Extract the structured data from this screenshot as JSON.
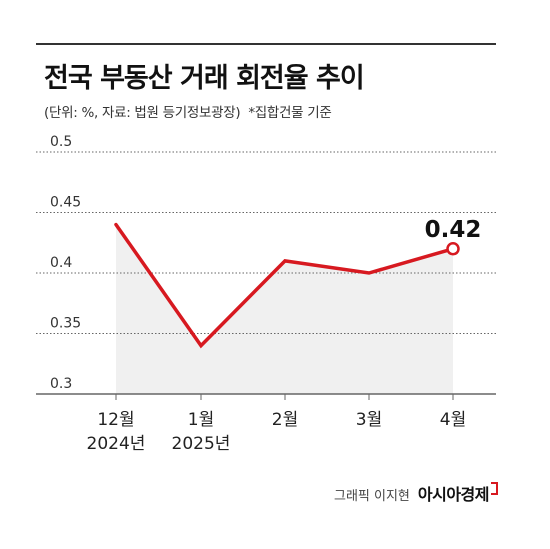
{
  "header": {
    "title": "전국 부동산 거래 회전율 추이",
    "source": "(단위: %, 자료: 법원 등기정보광장)",
    "note": "*집합건물 기준"
  },
  "footer": {
    "graphic_credit": "그래픽 이지현",
    "brand": "아시아경제"
  },
  "colors": {
    "line": "#d71920",
    "area": "#f0f0f0",
    "grid": "#666666",
    "text": "#333333"
  },
  "chart_data": {
    "type": "line",
    "categories": [
      "12월\n2024년",
      "1월\n2025년",
      "2월",
      "3월",
      "4월"
    ],
    "values": [
      0.44,
      0.34,
      0.41,
      0.4,
      0.42
    ],
    "y_ticks": [
      "0.5",
      "0.45",
      "0.4",
      "0.35",
      "0.3"
    ],
    "ylim": [
      0.3,
      0.5
    ],
    "grid": "horizontal-dotted",
    "highlight": {
      "index": 4,
      "label": "0.42"
    }
  }
}
